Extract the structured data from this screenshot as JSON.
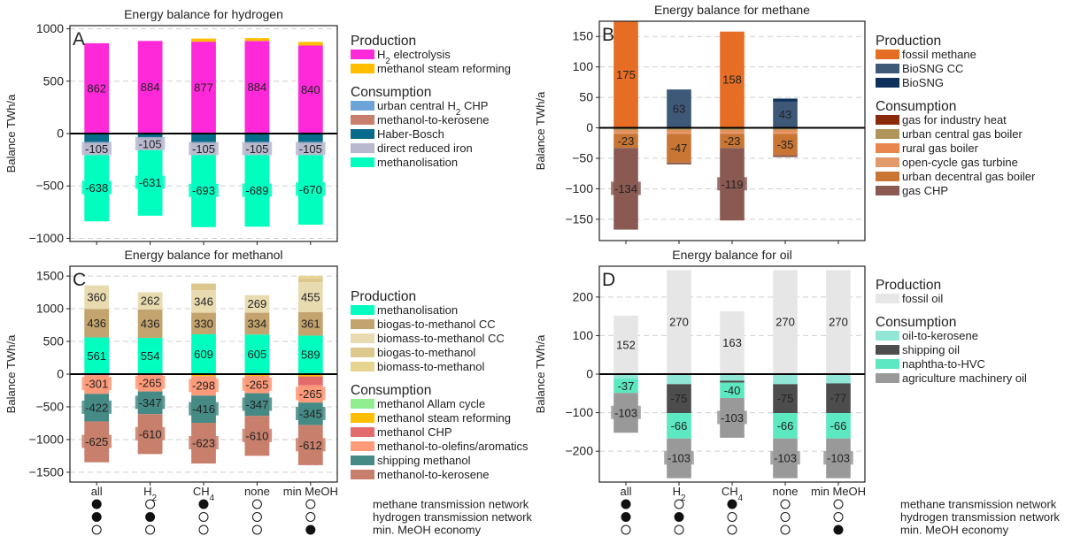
{
  "figure": {
    "scenario_columns": [
      "all",
      "H2",
      "CH4",
      "none",
      "min MeOH"
    ],
    "scenario_flags": [
      {
        "label": "methane transmission network",
        "values": [
          true,
          false,
          true,
          false,
          false
        ]
      },
      {
        "label": "hydrogen transmission network",
        "values": [
          true,
          true,
          false,
          false,
          false
        ]
      },
      {
        "label": "min. MeOH economy",
        "values": [
          false,
          false,
          false,
          false,
          true
        ]
      }
    ]
  },
  "chart_data": [
    {
      "panel": "A",
      "type": "bar",
      "stacked": true,
      "title": "Energy balance for hydrogen",
      "ylabel": "Balance TWh/a",
      "ylim": [
        -1030,
        1030
      ],
      "yticks": [
        -1000,
        -500,
        0,
        500,
        1000
      ],
      "categories": [
        "all",
        "H2",
        "CH4",
        "none",
        "min MeOH"
      ],
      "grid": "horizontal dashed",
      "legend_placement": "right",
      "series": [
        {
          "name": "H2 electrolysis",
          "group": "Production",
          "color": "#ff29d9",
          "values": [
            862,
            884,
            877,
            884,
            840
          ]
        },
        {
          "name": "methanol steam reforming",
          "group": "Production",
          "color": "#ffbf00",
          "values": [
            0,
            0,
            30,
            27,
            35
          ]
        },
        {
          "name": "urban central H2 CHP",
          "group": "Consumption",
          "color": "#6ea5d9",
          "values": [
            0,
            0,
            0,
            0,
            0
          ]
        },
        {
          "name": "methanol-to-kerosene",
          "group": "Consumption",
          "color": "#c8806c",
          "values": [
            0,
            0,
            0,
            0,
            0
          ]
        },
        {
          "name": "Haber-Bosch",
          "group": "Consumption",
          "color": "#066a8a",
          "values": [
            -95,
            -48,
            -95,
            -95,
            -95
          ]
        },
        {
          "name": "direct reduced iron",
          "group": "Consumption",
          "color": "#b8b8cf",
          "values": [
            -105,
            -105,
            -105,
            -105,
            -105
          ]
        },
        {
          "name": "methanolisation",
          "group": "Consumption",
          "color": "#00ffbf",
          "values": [
            -638,
            -631,
            -693,
            -689,
            -670
          ]
        }
      ],
      "value_labels": [
        {
          "series": "H2 electrolysis",
          "texts": [
            "862",
            "884",
            "877",
            "884",
            "840"
          ]
        },
        {
          "series": "direct reduced iron",
          "texts": [
            "-105",
            "-105",
            "-105",
            "-105",
            "-105"
          ]
        },
        {
          "series": "methanolisation",
          "texts": [
            "-638",
            "-631",
            "-693",
            "-689",
            "-670"
          ]
        }
      ]
    },
    {
      "panel": "B",
      "type": "bar",
      "stacked": true,
      "title": "Energy balance for methane",
      "ylabel": "Balance TWh/a",
      "ylim": [
        -185,
        175
      ],
      "yticks": [
        -150,
        -100,
        -50,
        0,
        50,
        100,
        150
      ],
      "categories": [
        "all",
        "H2",
        "CH4",
        "none",
        "min MeOH"
      ],
      "grid": "horizontal dashed",
      "legend_placement": "right",
      "series": [
        {
          "name": "fossil methane",
          "group": "Production",
          "color": "#e66e24",
          "values": [
            175,
            0,
            158,
            0,
            0
          ]
        },
        {
          "name": "BioSNG CC",
          "group": "Production",
          "color": "#3e5878",
          "values": [
            0,
            63,
            0,
            43,
            0
          ]
        },
        {
          "name": "BioSNG",
          "group": "Production",
          "color": "#10305c",
          "values": [
            0,
            0,
            0,
            5,
            0
          ]
        },
        {
          "name": "gas for industry heat",
          "group": "Consumption",
          "color": "#8b2a0a",
          "values": [
            -1,
            -1,
            -1,
            -1,
            0
          ]
        },
        {
          "name": "urban central gas boiler",
          "group": "Consumption",
          "color": "#b0955a",
          "values": [
            -3,
            -3,
            -3,
            -3,
            0
          ]
        },
        {
          "name": "rural gas boiler",
          "group": "Consumption",
          "color": "#e8864e",
          "values": [
            -3,
            -3,
            -3,
            -3,
            0
          ]
        },
        {
          "name": "open-cycle gas turbine",
          "group": "Consumption",
          "color": "#e39a6b",
          "values": [
            -3,
            -3,
            -3,
            -3,
            0
          ]
        },
        {
          "name": "urban decentral gas boiler",
          "group": "Consumption",
          "color": "#c97634",
          "values": [
            -23,
            -47,
            -23,
            -35,
            0
          ]
        },
        {
          "name": "gas CHP",
          "group": "Consumption",
          "color": "#8a5a52",
          "values": [
            -134,
            -3,
            -119,
            -3,
            0
          ]
        }
      ],
      "value_labels": [
        {
          "series": "fossil methane",
          "texts": [
            "175",
            "",
            "158",
            "",
            ""
          ]
        },
        {
          "series": "BioSNG CC",
          "texts": [
            "",
            "63",
            "",
            "43",
            ""
          ]
        },
        {
          "series": "urban decentral gas boiler",
          "texts": [
            "-23",
            "-47",
            "-23",
            "-35",
            ""
          ]
        },
        {
          "series": "gas CHP",
          "texts": [
            "-134",
            "",
            "-119",
            "",
            ""
          ]
        }
      ]
    },
    {
      "panel": "C",
      "type": "bar",
      "stacked": true,
      "title": "Energy balance for methanol",
      "ylabel": "Balance TWh/a",
      "ylim": [
        -1650,
        1650
      ],
      "yticks": [
        -1500,
        -1000,
        -500,
        0,
        500,
        1000,
        1500
      ],
      "categories": [
        "all",
        "H2",
        "CH4",
        "none",
        "min MeOH"
      ],
      "grid": "horizontal dashed",
      "legend_placement": "right",
      "series": [
        {
          "name": "methanolisation",
          "group": "Production",
          "color": "#00ffbf",
          "values": [
            561,
            554,
            609,
            605,
            589
          ]
        },
        {
          "name": "biogas-to-methanol CC",
          "group": "Production",
          "color": "#c4a46e",
          "values": [
            436,
            436,
            330,
            334,
            361
          ]
        },
        {
          "name": "biomass-to-methanol CC",
          "group": "Production",
          "color": "#e9dbb0",
          "values": [
            360,
            262,
            346,
            269,
            455
          ]
        },
        {
          "name": "biogas-to-methanol",
          "group": "Production",
          "color": "#dcc78c",
          "values": [
            0,
            0,
            100,
            0,
            60
          ]
        },
        {
          "name": "biomass-to-methanol",
          "group": "Production",
          "color": "#e8d491",
          "values": [
            0,
            0,
            0,
            0,
            40
          ]
        },
        {
          "name": "methanol Allam cycle",
          "group": "Consumption",
          "color": "#90ee90",
          "values": [
            0,
            0,
            0,
            0,
            0
          ]
        },
        {
          "name": "methanol steam reforming",
          "group": "Consumption",
          "color": "#ffbf00",
          "values": [
            0,
            0,
            -30,
            -27,
            -35
          ]
        },
        {
          "name": "methanol CHP",
          "group": "Consumption",
          "color": "#e36b6b",
          "values": [
            0,
            0,
            0,
            0,
            -135
          ]
        },
        {
          "name": "methanol-to-olefins/aromatics",
          "group": "Consumption",
          "color": "#fd9a7a",
          "values": [
            -301,
            -265,
            -298,
            -265,
            -265
          ]
        },
        {
          "name": "shipping methanol",
          "group": "Consumption",
          "color": "#468a86",
          "values": [
            -422,
            -347,
            -416,
            -347,
            -345
          ]
        },
        {
          "name": "methanol-to-kerosene",
          "group": "Consumption",
          "color": "#c8806c",
          "values": [
            -625,
            -610,
            -623,
            -610,
            -612
          ]
        }
      ],
      "value_labels": [
        {
          "series": "methanolisation",
          "texts": [
            "561",
            "554",
            "609",
            "605",
            "589"
          ]
        },
        {
          "series": "biogas-to-methanol CC",
          "texts": [
            "436",
            "436",
            "330",
            "334",
            "361"
          ]
        },
        {
          "series": "biomass-to-methanol CC",
          "texts": [
            "360",
            "262",
            "346",
            "269",
            "455"
          ]
        },
        {
          "series": "methanol-to-olefins/aromatics",
          "texts": [
            "-301",
            "-265",
            "-298",
            "-265",
            "-265"
          ]
        },
        {
          "series": "shipping methanol",
          "texts": [
            "-422",
            "-347",
            "-416",
            "-347",
            "-345"
          ]
        },
        {
          "series": "methanol-to-kerosene",
          "texts": [
            "-625",
            "-610",
            "-623",
            "-610",
            "-612"
          ]
        }
      ]
    },
    {
      "panel": "D",
      "type": "bar",
      "stacked": true,
      "title": "Energy balance for oil",
      "ylabel": "Balance TWh/a",
      "ylim": [
        -280,
        280
      ],
      "yticks": [
        -200,
        -100,
        0,
        100,
        200
      ],
      "categories": [
        "all",
        "H2",
        "CH4",
        "none",
        "min MeOH"
      ],
      "grid": "horizontal dashed",
      "legend_placement": "right",
      "series": [
        {
          "name": "fossil oil",
          "group": "Production",
          "color": "#e6e6e6",
          "values": [
            152,
            270,
            163,
            270,
            270
          ]
        },
        {
          "name": "oil-to-kerosene",
          "group": "Consumption",
          "color": "#92e6d6",
          "values": [
            -12,
            -26,
            -17,
            -26,
            -24
          ]
        },
        {
          "name": "shipping oil",
          "group": "Consumption",
          "color": "#4d4d4d",
          "values": [
            0,
            -75,
            -5,
            -75,
            -77
          ]
        },
        {
          "name": "naphtha-to-HVC",
          "group": "Consumption",
          "color": "#5ce8c0",
          "values": [
            -37,
            -66,
            -40,
            -66,
            -66
          ]
        },
        {
          "name": "agriculture machinery oil",
          "group": "Consumption",
          "color": "#999999",
          "values": [
            -103,
            -103,
            -103,
            -103,
            -103
          ]
        }
      ],
      "value_labels": [
        {
          "series": "fossil oil",
          "texts": [
            "152",
            "270",
            "163",
            "270",
            "270"
          ]
        },
        {
          "series": "shipping oil",
          "texts": [
            "",
            "-75",
            "",
            "-75",
            "-77"
          ]
        },
        {
          "series": "naphtha-to-HVC",
          "texts": [
            "-37",
            "-66",
            "-40",
            "-66",
            "-66"
          ]
        },
        {
          "series": "agriculture machinery oil",
          "texts": [
            "-103",
            "-103",
            "-103",
            "-103",
            "-103"
          ]
        }
      ]
    }
  ]
}
